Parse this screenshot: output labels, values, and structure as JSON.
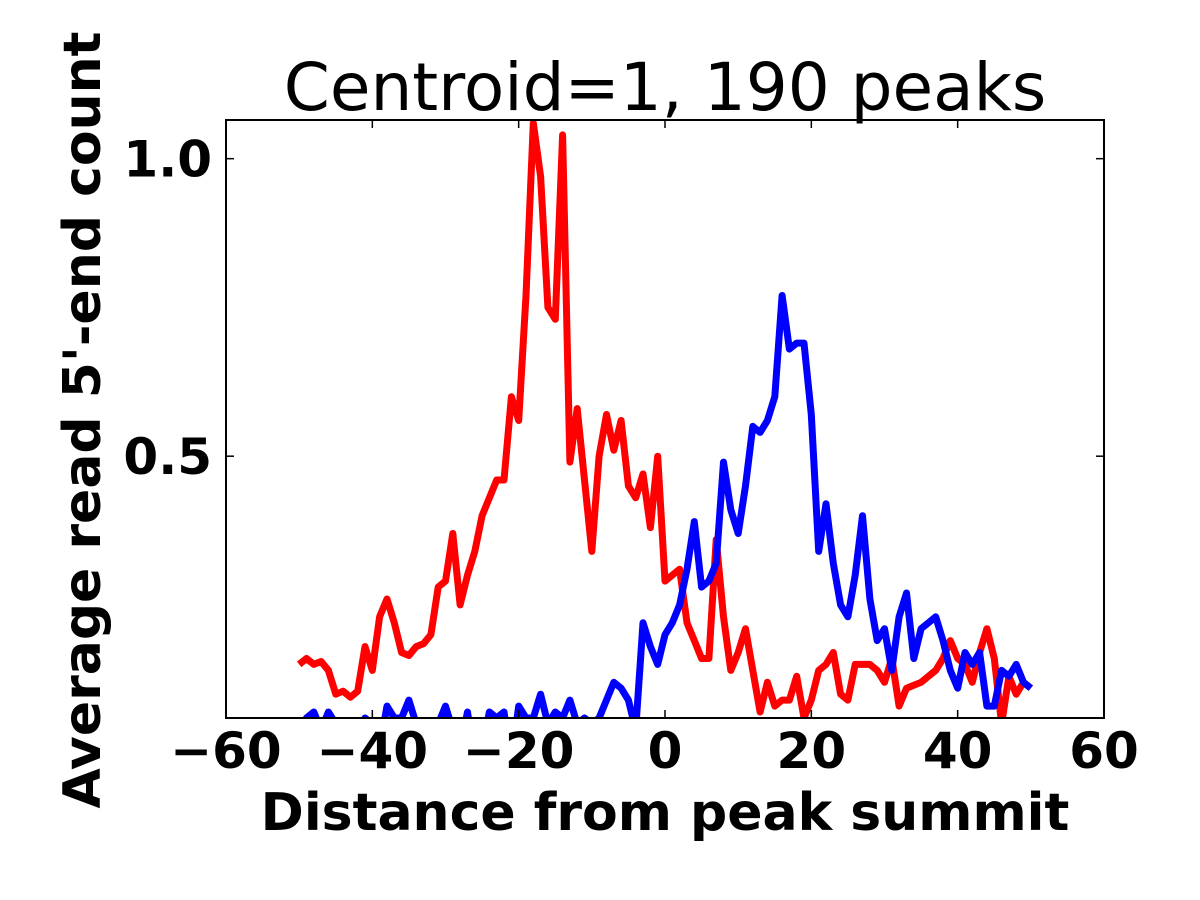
{
  "chart_data": {
    "type": "line",
    "title": "Centroid=1, 190 peaks",
    "xlabel": "Distance from peak summit",
    "ylabel": "Average read 5'-end count",
    "xlim": [
      -60,
      60
    ],
    "ylim": [
      0.06,
      1.065
    ],
    "xticks": [
      -60,
      -40,
      -20,
      0,
      20,
      40,
      60
    ],
    "xtick_labels": [
      "−60",
      "−40",
      "−20",
      "0",
      "20",
      "40",
      "60"
    ],
    "yticks": [
      0.5,
      1.0
    ],
    "ytick_labels": [
      "0.5",
      "1.0"
    ],
    "grid": false,
    "legend": "none",
    "x": [
      -50,
      -49,
      -48,
      -47,
      -46,
      -45,
      -44,
      -43,
      -42,
      -41,
      -40,
      -39,
      -38,
      -37,
      -36,
      -35,
      -34,
      -33,
      -32,
      -31,
      -30,
      -29,
      -28,
      -27,
      -26,
      -25,
      -24,
      -23,
      -22,
      -21,
      -20,
      -19,
      -18,
      -17,
      -16,
      -15,
      -14,
      -13,
      -12,
      -11,
      -10,
      -9,
      -8,
      -7,
      -6,
      -5,
      -4,
      -3,
      -2,
      -1,
      0,
      1,
      2,
      3,
      4,
      5,
      6,
      7,
      8,
      9,
      10,
      11,
      12,
      13,
      14,
      15,
      16,
      17,
      18,
      19,
      20,
      21,
      22,
      23,
      24,
      25,
      26,
      27,
      28,
      29,
      30,
      31,
      32,
      33,
      34,
      35,
      36,
      37,
      38,
      39,
      40,
      41,
      42,
      43,
      44,
      45,
      46,
      47,
      48,
      49,
      50
    ],
    "series": [
      {
        "color": "#ff0000",
        "values": [
          0.15,
          0.16,
          0.15,
          0.155,
          0.14,
          0.1,
          0.105,
          0.095,
          0.105,
          0.18,
          0.14,
          0.23,
          0.26,
          0.22,
          0.17,
          0.165,
          0.18,
          0.185,
          0.2,
          0.28,
          0.29,
          0.37,
          0.25,
          0.3,
          0.34,
          0.4,
          0.43,
          0.46,
          0.46,
          0.6,
          0.56,
          0.77,
          1.06,
          0.97,
          0.75,
          0.73,
          1.04,
          0.49,
          0.58,
          0.46,
          0.34,
          0.5,
          0.57,
          0.51,
          0.56,
          0.45,
          0.43,
          0.47,
          0.38,
          0.5,
          0.29,
          0.3,
          0.31,
          0.22,
          0.19,
          0.16,
          0.16,
          0.36,
          0.23,
          0.14,
          0.17,
          0.21,
          0.14,
          0.07,
          0.12,
          0.08,
          0.09,
          0.09,
          0.13,
          0.06,
          0.09,
          0.14,
          0.15,
          0.17,
          0.1,
          0.09,
          0.15,
          0.15,
          0.15,
          0.14,
          0.12,
          0.16,
          0.08,
          0.11,
          0.115,
          0.12,
          0.13,
          0.14,
          0.16,
          0.19,
          0.16,
          0.15,
          0.12,
          0.17,
          0.21,
          0.16,
          0.05,
          0.13,
          0.1,
          0.12,
          0.11
        ]
      },
      {
        "color": "#0000ff",
        "values": [
          0.03,
          0.06,
          0.07,
          0.04,
          0.07,
          0.05,
          0.05,
          0.03,
          0.04,
          0.06,
          0.05,
          0.01,
          0.08,
          0.06,
          0.06,
          0.09,
          0.05,
          0.03,
          0.03,
          0.05,
          0.08,
          0.04,
          0.01,
          0.07,
          -0.01,
          0.01,
          0.07,
          0.06,
          0.07,
          -0.01,
          0.08,
          0.06,
          0.06,
          0.1,
          0.05,
          0.07,
          0.06,
          0.09,
          0.05,
          0.06,
          0.05,
          0.06,
          0.09,
          0.12,
          0.11,
          0.09,
          0.04,
          0.22,
          0.18,
          0.15,
          0.2,
          0.22,
          0.25,
          0.31,
          0.39,
          0.28,
          0.29,
          0.32,
          0.49,
          0.41,
          0.37,
          0.45,
          0.55,
          0.54,
          0.56,
          0.6,
          0.77,
          0.68,
          0.69,
          0.69,
          0.57,
          0.34,
          0.42,
          0.32,
          0.25,
          0.23,
          0.3,
          0.4,
          0.26,
          0.19,
          0.21,
          0.14,
          0.23,
          0.27,
          0.16,
          0.21,
          0.22,
          0.23,
          0.19,
          0.14,
          0.11,
          0.17,
          0.15,
          0.17,
          0.08,
          0.08,
          0.14,
          0.13,
          0.15,
          0.12,
          0.11
        ]
      }
    ]
  }
}
